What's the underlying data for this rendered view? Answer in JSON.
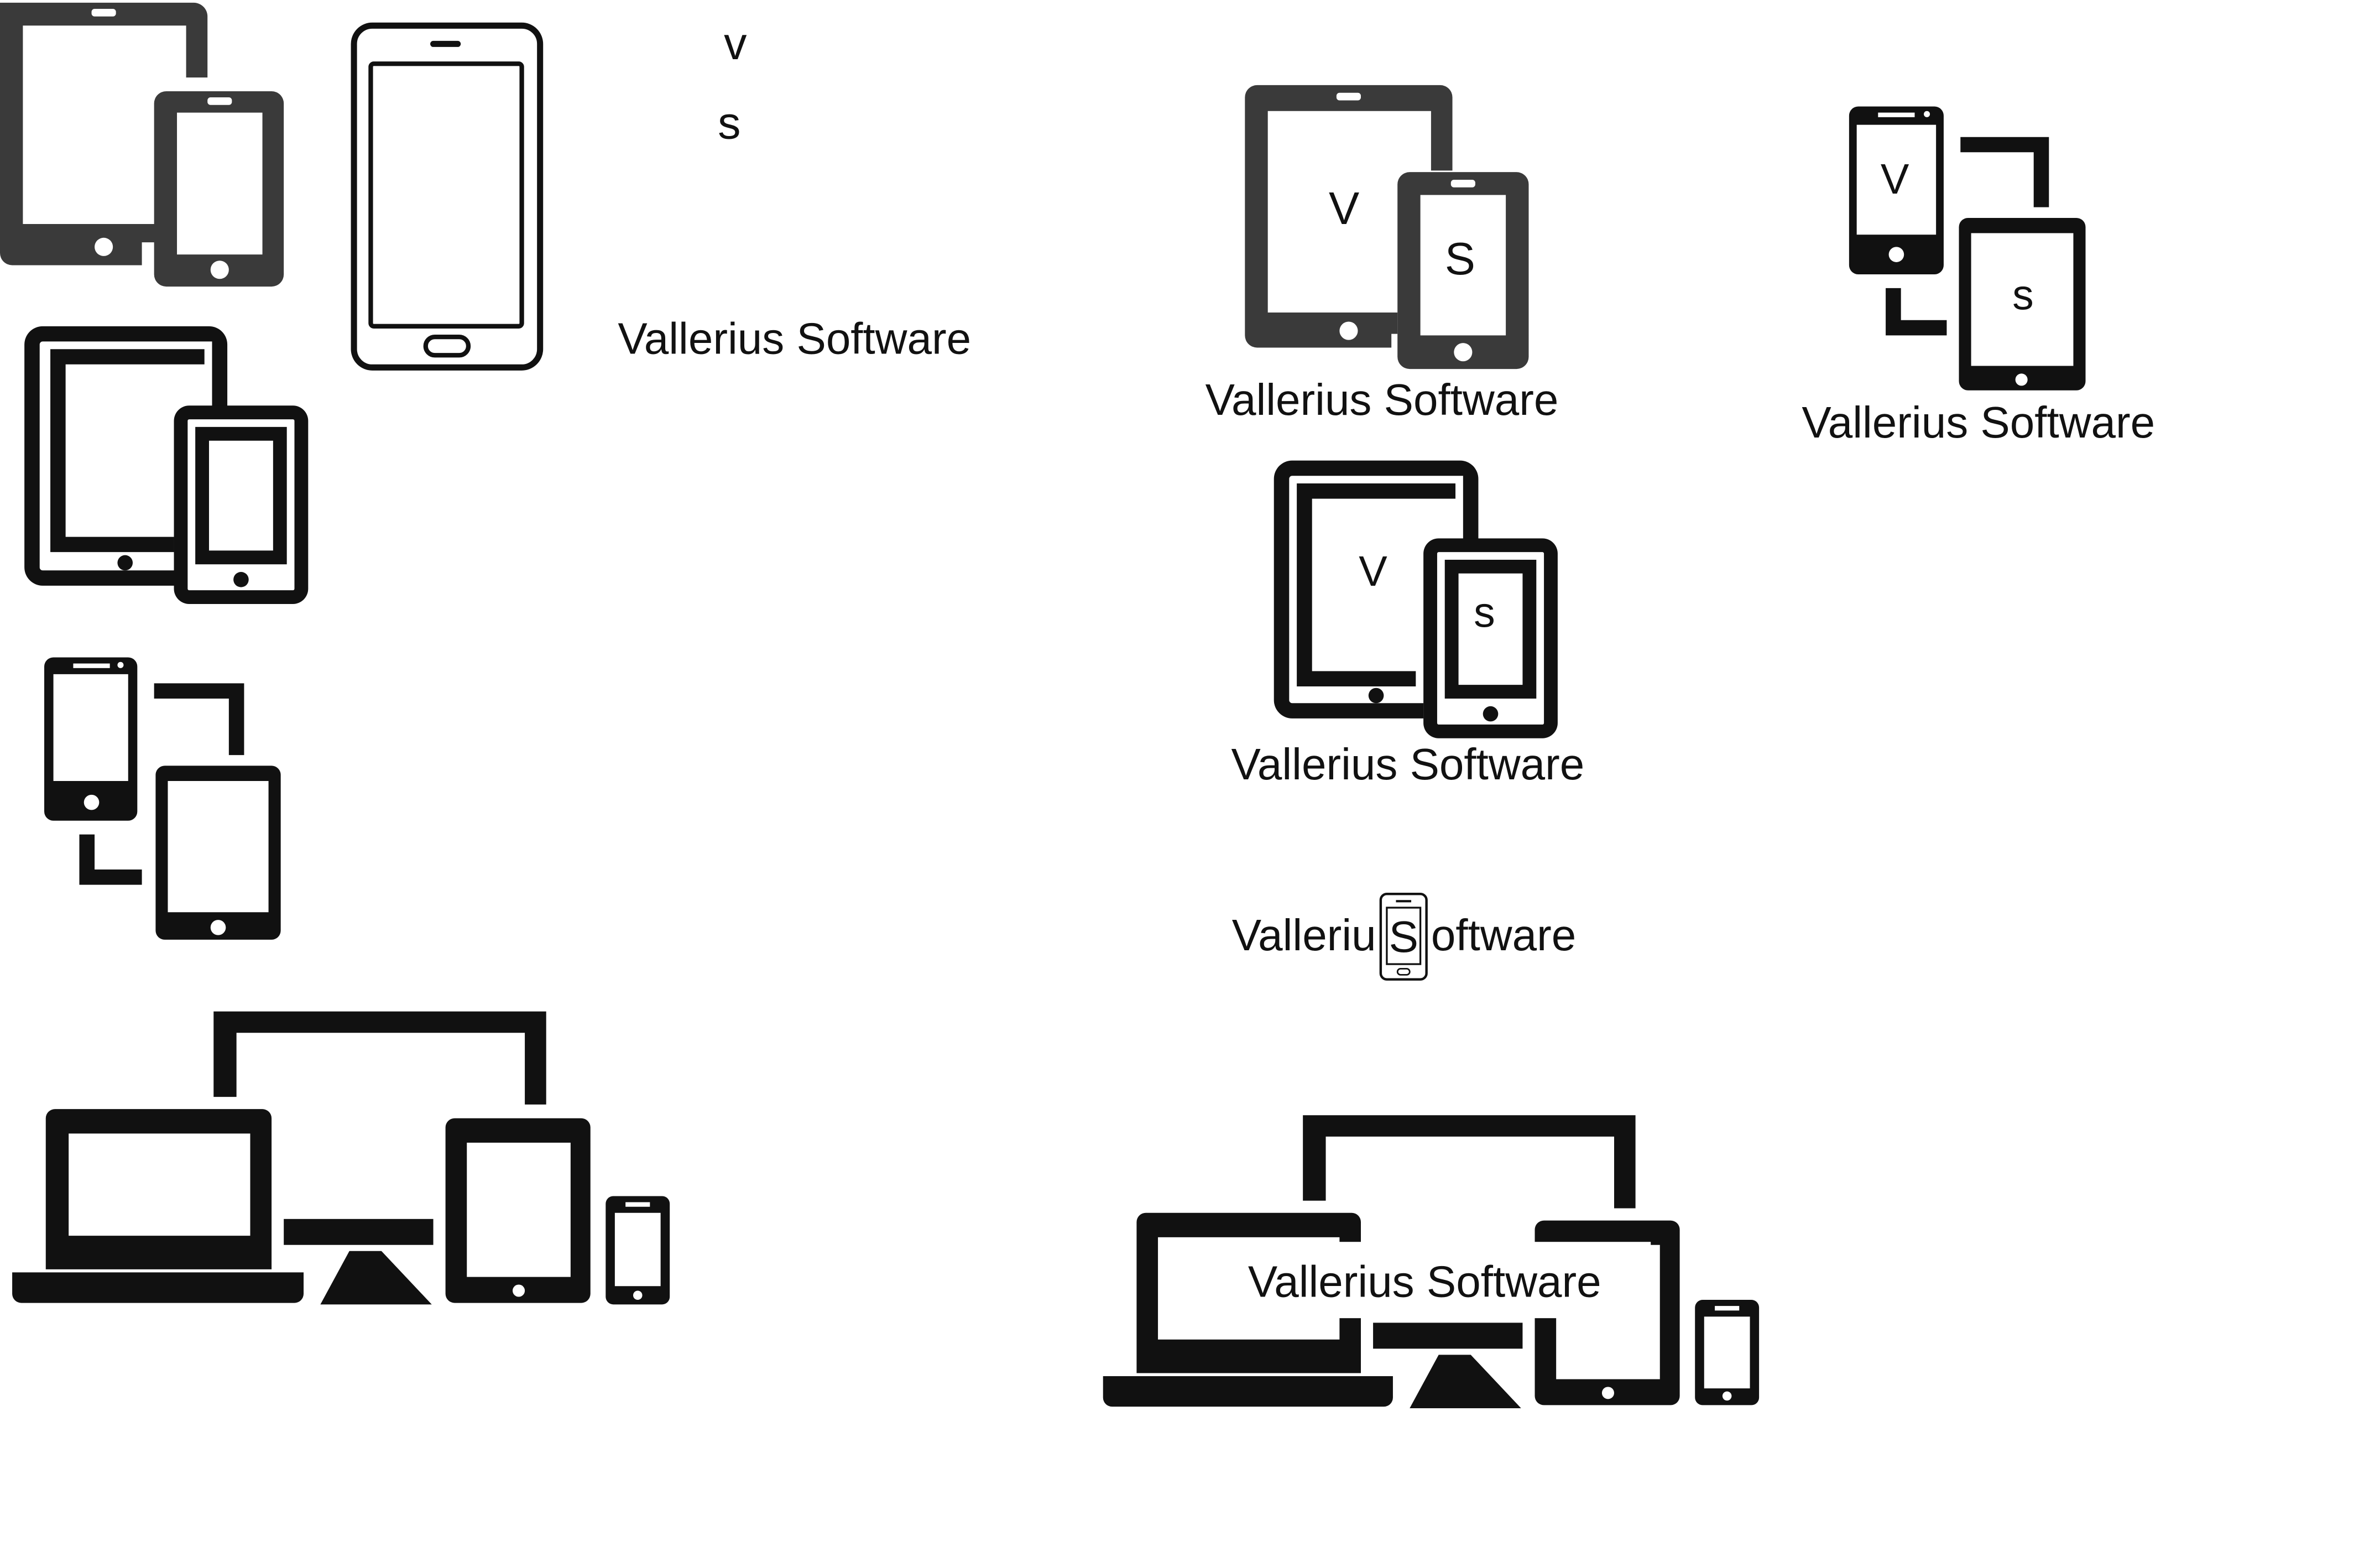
{
  "colors": {
    "ink": "#111111",
    "dark_gray": "#3a3a3a",
    "background": "#ffffff"
  },
  "icons": [
    "tablet-and-phone-icon",
    "smartphone-outline-icon",
    "tablet-and-phone-outline-icon",
    "phone-tablet-sync-icon",
    "multi-device-icon",
    "small-smartphone-icon"
  ],
  "loose_letters": {
    "v": "v",
    "s": "s"
  },
  "logos": [
    {
      "brand": "Vallerius Software",
      "v": "V",
      "s": "S"
    },
    {
      "brand": "Vallerius Software",
      "v": "V",
      "s": "s"
    },
    {
      "brand": "Vallerius Software",
      "v": "V",
      "s": "s"
    },
    {
      "brand_before": "Valleriu",
      "brand_s": "S",
      "brand_after": "oftware"
    },
    {
      "brand": "Vallerius Software"
    }
  ],
  "standalone_brand": "Vallerius Software"
}
